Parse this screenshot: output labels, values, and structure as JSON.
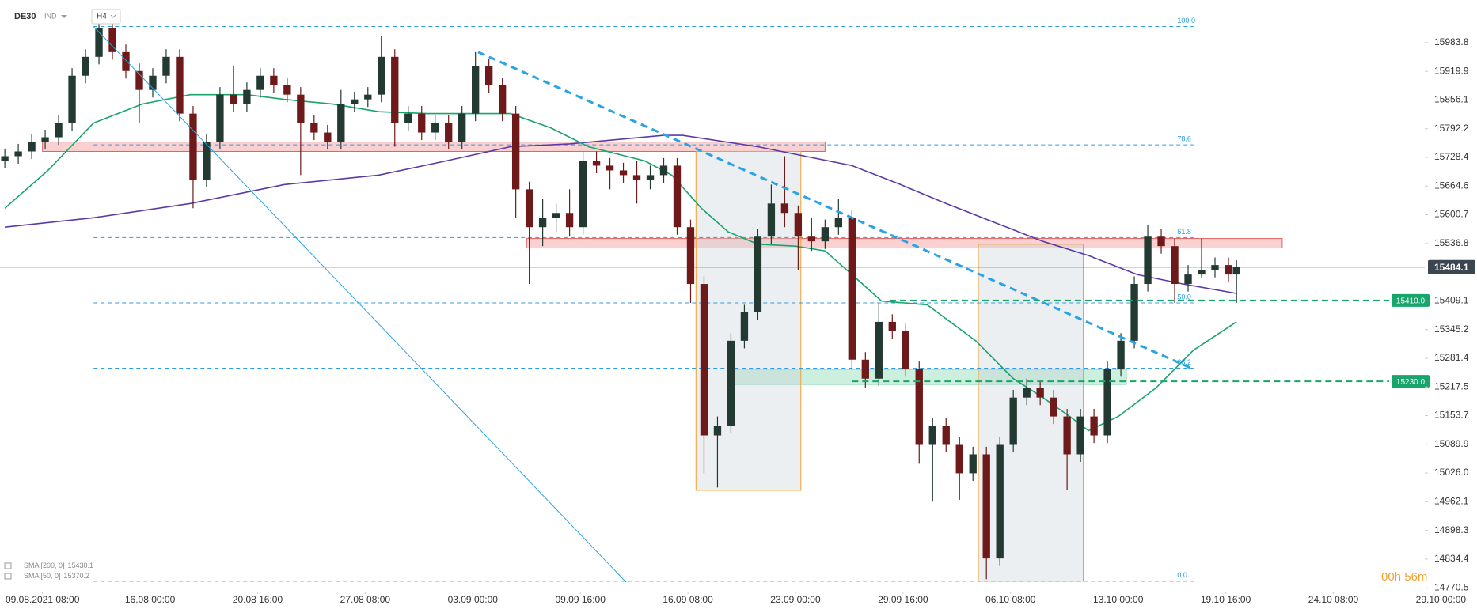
{
  "chart_data": {
    "type": "candlestick",
    "symbol": "DE30",
    "market": "IND",
    "timeframe": "H4",
    "up_color": "#233a33",
    "down_color": "#6e1a1a",
    "x": [
      0,
      5,
      10,
      15,
      20,
      25,
      30,
      35,
      40,
      45,
      50,
      55,
      60,
      65,
      70,
      75,
      80,
      85,
      90,
      95,
      100,
      105,
      110,
      115,
      120,
      125,
      130,
      135,
      140,
      145,
      150,
      155,
      160,
      165,
      170,
      175,
      180,
      185,
      190,
      195,
      200,
      205,
      210,
      215,
      220,
      225,
      230,
      235,
      240,
      245,
      250,
      255,
      260,
      265,
      270,
      275,
      280,
      285,
      290,
      295,
      300,
      305,
      310,
      315,
      320,
      325,
      330,
      335,
      340,
      345,
      350,
      355,
      360,
      365,
      370,
      375,
      380,
      385,
      390,
      395,
      400,
      405,
      410,
      415,
      420,
      425,
      430,
      435,
      440,
      445,
      450,
      455,
      458
    ],
    "open": [
      15720.5,
      15731.0,
      15741.6,
      15762.6,
      15773.2,
      15804.8,
      15910.1,
      15952.2,
      16015.4,
      15962.7,
      15920.6,
      15878.5,
      15910.1,
      15952.2,
      15825.8,
      15678.4,
      15762.6,
      15868.0,
      15846.9,
      15878.5,
      15910.1,
      15889.0,
      15868.0,
      15804.8,
      15783.7,
      15762.6,
      15846.9,
      15857.4,
      15868.0,
      15952.2,
      15804.8,
      15825.8,
      15783.7,
      15804.8,
      15762.6,
      15825.8,
      15931.2,
      15889.0,
      15825.8,
      15657.3,
      15573.1,
      15594.1,
      15604.7,
      15573.1,
      15720.5,
      15710.0,
      15699.4,
      15688.9,
      15678.4,
      15688.9,
      15710.0,
      15573.1,
      15446.7,
      15109.7,
      15130.7,
      15320.3,
      15383.5,
      15552.0,
      15625.7,
      15604.7,
      15552.0,
      15541.5,
      15573.1,
      15594.1,
      15278.2,
      15236.0,
      15362.4,
      15341.4,
      15257.1,
      15088.6,
      15130.7,
      15088.6,
      15025.4,
      15067.5,
      14835.8,
      15088.6,
      15193.9,
      15215.0,
      15193.9,
      15151.8,
      15067.5,
      15151.8,
      15109.7,
      15257.1,
      15320.3,
      15446.7,
      15552.0,
      15530.9,
      15446.7,
      15467.7,
      15478.3,
      15488.8,
      15467.7
    ],
    "high": [
      15747.9,
      15758.4,
      15779.5,
      15790.0,
      15821.6,
      15926.9,
      15969.1,
      16032.3,
      16032.3,
      15979.6,
      15937.5,
      15926.9,
      15969.1,
      15969.1,
      15842.7,
      15779.5,
      15884.8,
      15931.2,
      15895.3,
      15926.9,
      15926.9,
      15905.9,
      15884.8,
      15821.6,
      15800.6,
      15878.5,
      15874.3,
      15884.8,
      15998.6,
      15969.1,
      15842.7,
      15842.7,
      15821.6,
      15821.6,
      15842.7,
      15962.7,
      15948.0,
      15905.9,
      15842.7,
      15674.2,
      15636.3,
      15625.7,
      15657.3,
      15741.6,
      15741.6,
      15726.8,
      15716.3,
      15720.5,
      15710.0,
      15726.8,
      15726.8,
      15589.9,
      15463.5,
      15151.8,
      15337.1,
      15400.3,
      15568.9,
      15667.9,
      15731.0,
      15621.5,
      15594.1,
      15589.9,
      15636.3,
      15611.0,
      15295.0,
      15404.6,
      15379.3,
      15358.2,
      15274.0,
      15147.6,
      15147.6,
      15105.4,
      15084.4,
      15084.4,
      15105.4,
      15210.8,
      15236.0,
      15231.8,
      15210.8,
      15168.6,
      15168.6,
      15168.6,
      15274.0,
      15337.1,
      15463.5,
      15577.3,
      15568.9,
      15547.8,
      15488.8,
      15547.8,
      15505.7,
      15505.7,
      15499.3
    ],
    "low": [
      15703.7,
      15714.2,
      15724.7,
      15745.8,
      15756.3,
      15787.9,
      15893.2,
      15935.4,
      15945.9,
      15903.8,
      15804.8,
      15861.6,
      15893.2,
      15809.0,
      15615.2,
      15661.5,
      15745.8,
      15830.0,
      15830.0,
      15861.6,
      15872.2,
      15851.1,
      15688.9,
      15766.9,
      15745.8,
      15745.8,
      15830.0,
      15840.6,
      15851.1,
      15752.1,
      15787.9,
      15766.9,
      15766.9,
      15745.8,
      15745.8,
      15809.0,
      15872.2,
      15809.0,
      15594.1,
      15446.7,
      15530.9,
      15562.5,
      15552.0,
      15556.2,
      15693.1,
      15657.3,
      15672.1,
      15625.7,
      15657.3,
      15672.1,
      15556.2,
      15404.6,
      15025.4,
      14993.8,
      15113.9,
      15303.4,
      15366.6,
      15535.1,
      15573.1,
      15478.3,
      15520.4,
      15524.6,
      15556.2,
      15257.1,
      15215.0,
      15219.2,
      15324.5,
      15240.3,
      15046.5,
      14962.2,
      15071.7,
      14966.4,
      15008.5,
      14789.5,
      14819.0,
      15071.7,
      15177.1,
      15177.1,
      15134.9,
      14987.5,
      15050.7,
      15092.8,
      15092.8,
      15240.3,
      15303.4,
      15429.8,
      15514.1,
      15404.6,
      15429.8,
      15461.4,
      15461.4,
      15450.9,
      15404.6
    ],
    "close": [
      15731.0,
      15741.6,
      15762.6,
      15773.2,
      15804.8,
      15910.1,
      15952.2,
      16015.4,
      15962.7,
      15920.6,
      15878.5,
      15910.1,
      15952.2,
      15825.8,
      15678.4,
      15762.6,
      15868.0,
      15846.9,
      15878.5,
      15910.1,
      15889.0,
      15868.0,
      15804.8,
      15783.7,
      15762.6,
      15846.9,
      15857.4,
      15868.0,
      15952.2,
      15804.8,
      15825.8,
      15783.7,
      15804.8,
      15762.6,
      15825.8,
      15931.2,
      15889.0,
      15825.8,
      15657.3,
      15573.1,
      15594.1,
      15604.7,
      15573.1,
      15720.5,
      15710.0,
      15699.4,
      15688.9,
      15678.4,
      15688.9,
      15710.0,
      15573.1,
      15446.7,
      15109.7,
      15130.7,
      15320.3,
      15383.5,
      15552.0,
      15625.7,
      15604.7,
      15552.0,
      15541.5,
      15573.1,
      15594.1,
      15278.2,
      15236.0,
      15362.4,
      15341.4,
      15257.1,
      15088.6,
      15130.7,
      15088.6,
      15025.4,
      15067.5,
      14835.8,
      15088.6,
      15193.9,
      15215.0,
      15193.9,
      15151.8,
      15067.5,
      15151.8,
      15109.7,
      15257.1,
      15320.3,
      15446.7,
      15552.0,
      15530.9,
      15446.7,
      15467.7,
      15478.3,
      15488.8,
      15467.7,
      15484.1
    ],
    "xlim": [
      -1.8,
      528
    ],
    "xticks": [
      {
        "value": 14,
        "label": "09.08.2021 08:00"
      },
      {
        "value": 54,
        "label": "16.08 00:00"
      },
      {
        "value": 94,
        "label": "20.08 16:00"
      },
      {
        "value": 134,
        "label": "27.08 08:00"
      },
      {
        "value": 174,
        "label": "03.09 00:00"
      },
      {
        "value": 214,
        "label": "09.09 16:00"
      },
      {
        "value": 254,
        "label": "16.09 08:00"
      },
      {
        "value": 294,
        "label": "23.09 00:00"
      },
      {
        "value": 334,
        "label": "29.09 16:00"
      },
      {
        "value": 374,
        "label": "06.10 08:00"
      },
      {
        "value": 414,
        "label": "13.10 00:00"
      },
      {
        "value": 454,
        "label": "19.10 16:00"
      },
      {
        "value": 494,
        "label": "24.10 08:00"
      },
      {
        "value": 534,
        "label": "29.10 00:00"
      }
    ],
    "ylim": [
      14762.1,
      16078.6
    ],
    "yticks": [
      15983.8,
      15919.9,
      15856.1,
      15792.2,
      15728.4,
      15664.6,
      15600.7,
      15536.8,
      15409.1,
      15345.2,
      15281.4,
      15217.5,
      15153.7,
      15089.9,
      {
        "value": 15026,
        "label": "15026.0"
      },
      14962.1,
      14898.3,
      14834.4,
      14770.5
    ],
    "current_price": 15484.1,
    "indicators": [
      {
        "name": "SMA [200, 0]",
        "last": 15430.1,
        "color": "#5b3aa8",
        "x": [
          0,
          33,
          69,
          104,
          139,
          164,
          188,
          210,
          245,
          252,
          280,
          315,
          333,
          350,
          368,
          386,
          403,
          421,
          438,
          458
        ],
        "values": [
          15573.1,
          15594.1,
          15625.7,
          15667.9,
          15688.9,
          15720.5,
          15752.1,
          15758.4,
          15777.4,
          15777.4,
          15752.1,
          15710.0,
          15667.9,
          15625.7,
          15583.6,
          15541.5,
          15509.9,
          15467.7,
          15446.7,
          15425.6
        ]
      },
      {
        "name": "SMA [50, 0]",
        "last": 15370.2,
        "color": "#18a56b",
        "x": [
          0,
          16,
          33,
          51,
          69,
          90,
          104,
          122,
          139,
          157,
          174,
          188,
          203,
          217,
          238,
          248,
          259,
          269,
          280,
          294,
          305,
          315,
          326,
          343,
          361,
          375,
          386,
          396,
          403,
          414,
          428,
          442,
          458
        ],
        "values": [
          15615.2,
          15699.4,
          15804.8,
          15846.9,
          15868.0,
          15868.0,
          15857.4,
          15846.9,
          15830.0,
          15825.8,
          15825.8,
          15825.8,
          15794.2,
          15752.1,
          15720.5,
          15688.9,
          15615.2,
          15562.5,
          15535.1,
          15530.9,
          15520.4,
          15467.7,
          15408.8,
          15400.3,
          15320.3,
          15236.0,
          15193.9,
          15151.8,
          15120.2,
          15151.8,
          15215.0,
          15299.2,
          15362.4
        ]
      }
    ],
    "fibonacci": {
      "color": "#2f9be0",
      "x": [
        33,
        442
      ],
      "label_x": 436,
      "levels": [
        {
          "label": "100.0",
          "price": 16019.6
        },
        {
          "label": "78.6",
          "price": 15756.3
        },
        {
          "label": "61.8",
          "price": 15549.9
        },
        {
          "label": "50.0",
          "price": 15404.6
        },
        {
          "label": "38.2",
          "price": 15259.2
        },
        {
          "label": "0.0",
          "price": 14785.3
        }
      ]
    },
    "levels": [
      {
        "price": {
          "value": 15410,
          "label": "15410.0"
        },
        "x_start": 329,
        "color": "#18a56b"
      },
      {
        "price": {
          "value": 15230,
          "label": "15230.0"
        },
        "x_start": 315,
        "color": "#18a56b"
      }
    ],
    "zones": [
      {
        "x": [
          14,
          305
        ],
        "price": [
          15762.6,
          15741.6
        ],
        "fill": "rgba(240,120,120,0.35)",
        "stroke": "#e06060"
      },
      {
        "x": [
          194,
          475
        ],
        "price": [
          15547.8,
          15526.8
        ],
        "fill": "rgba(240,120,120,0.35)",
        "stroke": "#e06060"
      },
      {
        "x": [
          271,
          417
        ],
        "price": [
          15257.1,
          15223.4
        ],
        "fill": "rgba(110,210,160,0.35)",
        "stroke": "#4cbf88"
      },
      {
        "x": [
          257,
          296
        ],
        "price": [
          15741.6,
          14987.5
        ],
        "fill": "rgba(200,208,216,0.35)",
        "stroke": "#f5a030"
      },
      {
        "x": [
          362,
          401
        ],
        "price": [
          15535.1,
          14785.3
        ],
        "fill": "rgba(200,208,216,0.35)",
        "stroke": "#f5a030"
      }
    ],
    "trendlines": [
      {
        "x": [
          176,
          442
        ],
        "price": [
          15962.7,
          15257.1
        ],
        "color": "#2aa3e6",
        "dashed": true
      },
      {
        "x": [
          33,
          231
        ],
        "price": [
          16019.6,
          14783.2
        ],
        "color": "#2aa3e6",
        "dashed": false
      }
    ],
    "countdown": "00h 56m"
  }
}
